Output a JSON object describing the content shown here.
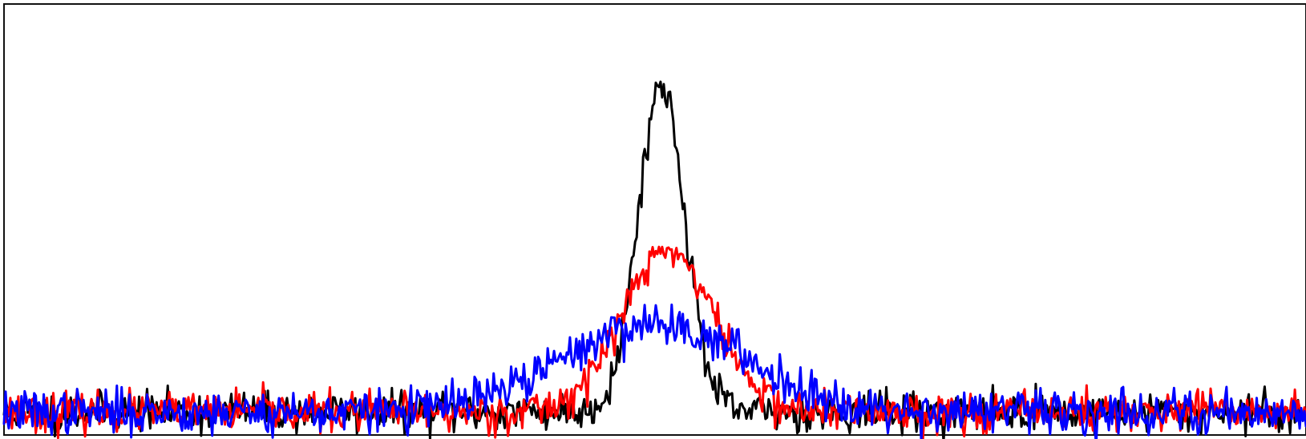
{
  "chart_data": {
    "type": "line",
    "title": "",
    "xlabel": "",
    "ylabel": "",
    "grid": false,
    "legend": "none",
    "xlim": [
      0,
      1
    ],
    "ylim": [
      -0.06,
      1.06
    ],
    "series": [
      {
        "color": "#000000",
        "center": 0.505,
        "width": 0.018,
        "amplitude": 0.85,
        "noise": 0.025,
        "seed": 11
      },
      {
        "color": "#ff0000",
        "center": 0.51,
        "width": 0.035,
        "amplitude": 0.42,
        "noise": 0.025,
        "seed": 23
      },
      {
        "color": "#0000ff",
        "center": 0.5,
        "width": 0.07,
        "amplitude": 0.23,
        "noise": 0.028,
        "seed": 37
      }
    ]
  }
}
